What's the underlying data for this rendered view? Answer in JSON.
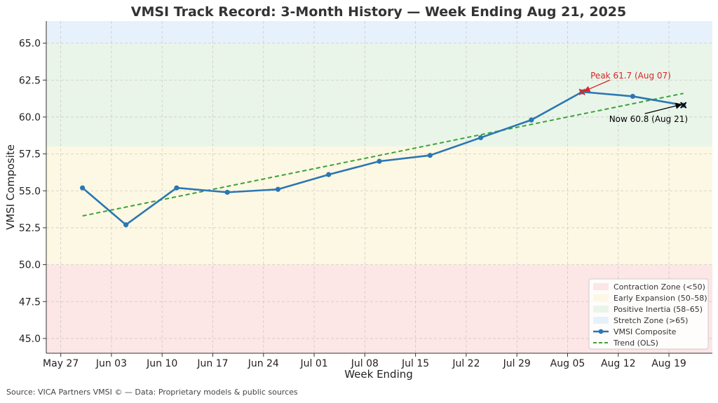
{
  "chart_data": {
    "type": "line",
    "title": "VMSI Track Record: 3-Month History — Week Ending Aug 21, 2025",
    "xlabel": "Week Ending",
    "ylabel": "VMSI Composite",
    "ylim": [
      44,
      66.5
    ],
    "xlim": [
      "2025-05-25",
      "2025-08-25"
    ],
    "x_ticks": [
      "May 27",
      "Jun 03",
      "Jun 10",
      "Jun 17",
      "Jun 24",
      "Jul 01",
      "Jul 08",
      "Jul 15",
      "Jul 22",
      "Jul 29",
      "Aug 05",
      "Aug 12",
      "Aug 19"
    ],
    "x_tick_dates": [
      "2025-05-27",
      "2025-06-03",
      "2025-06-10",
      "2025-06-17",
      "2025-06-24",
      "2025-07-01",
      "2025-07-08",
      "2025-07-15",
      "2025-07-22",
      "2025-07-29",
      "2025-08-05",
      "2025-08-12",
      "2025-08-19"
    ],
    "y_ticks": [
      "45.0",
      "47.5",
      "50.0",
      "52.5",
      "55.0",
      "57.5",
      "60.0",
      "62.5",
      "65.0"
    ],
    "y_tick_values": [
      45,
      47.5,
      50,
      52.5,
      55,
      57.5,
      60,
      62.5,
      65
    ],
    "grid": true,
    "legend_position": "bottom-right",
    "zones": [
      {
        "name": "Contraction Zone (<50)",
        "from": 44,
        "to": 50,
        "color": "#fde6e6"
      },
      {
        "name": "Early Expansion (50–58)",
        "from": 50,
        "to": 58,
        "color": "#fdf8e3"
      },
      {
        "name": "Positive Inertia (58–65)",
        "from": 58,
        "to": 65,
        "color": "#eaf5ea"
      },
      {
        "name": "Stretch Zone (>65)",
        "from": 65,
        "to": 66.5,
        "color": "#e7f1fb"
      }
    ],
    "series": [
      {
        "name": "VMSI Composite",
        "color": "#2b77b3",
        "x": [
          "2025-05-30",
          "2025-06-05",
          "2025-06-12",
          "2025-06-19",
          "2025-06-26",
          "2025-07-03",
          "2025-07-10",
          "2025-07-17",
          "2025-07-24",
          "2025-07-31",
          "2025-08-07",
          "2025-08-14",
          "2025-08-21"
        ],
        "values": [
          55.2,
          52.7,
          55.2,
          54.9,
          55.1,
          56.1,
          57.0,
          57.4,
          58.6,
          59.8,
          61.7,
          61.4,
          60.8
        ]
      },
      {
        "name": "Trend (OLS)",
        "color": "#3aa33a",
        "style": "dashed",
        "x": [
          "2025-05-30",
          "2025-08-21"
        ],
        "values": [
          53.3,
          61.6
        ]
      }
    ],
    "annotations": [
      {
        "text": "Peak 61.7 (Aug 07)",
        "x": "2025-08-07",
        "y": 61.7,
        "color": "#d62728",
        "marker": "x"
      },
      {
        "text": "Now 60.8 (Aug 21)",
        "x": "2025-08-21",
        "y": 60.8,
        "color": "#000000",
        "marker": "x"
      }
    ]
  },
  "footer": {
    "source": "Source: VICA Partners VMSI © — Data: Proprietary models & public sources"
  }
}
